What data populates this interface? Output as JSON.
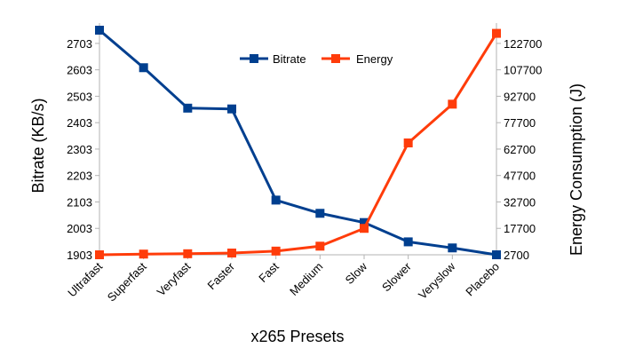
{
  "chart_data": {
    "type": "line",
    "categories": [
      "Ultrafast",
      "Superfast",
      "Veryfast",
      "Faster",
      "Fast",
      "Medium",
      "Slow",
      "Slower",
      "Veryslow",
      "Placebo"
    ],
    "xlabel": "x265 Presets",
    "ylabel": "Bitrate (KB/s)",
    "y2label": "Energy Consumption (J)",
    "ylim": [
      1903,
      2753
    ],
    "y_ticks": [
      "1903",
      "2003",
      "2103",
      "2203",
      "2303",
      "2403",
      "2503",
      "2603",
      "2703"
    ],
    "y2lim": [
      2700,
      130200
    ],
    "y2_ticks": [
      "2700",
      "17700",
      "32700",
      "47700",
      "62700",
      "77700",
      "92700",
      "107700",
      "122700"
    ],
    "grid": false,
    "legend_position": "top",
    "series": [
      {
        "name": "Bitrate",
        "axis": "left",
        "color": "#003f8f",
        "values": [
          2753,
          2611,
          2458,
          2455,
          2110,
          2060,
          2025,
          1952,
          1929,
          1903
        ]
      },
      {
        "name": "Energy",
        "axis": "right",
        "color": "#ff3c0a",
        "values": [
          2700,
          3100,
          3300,
          3700,
          4800,
          7600,
          17700,
          66200,
          88200,
          128400
        ]
      }
    ]
  }
}
